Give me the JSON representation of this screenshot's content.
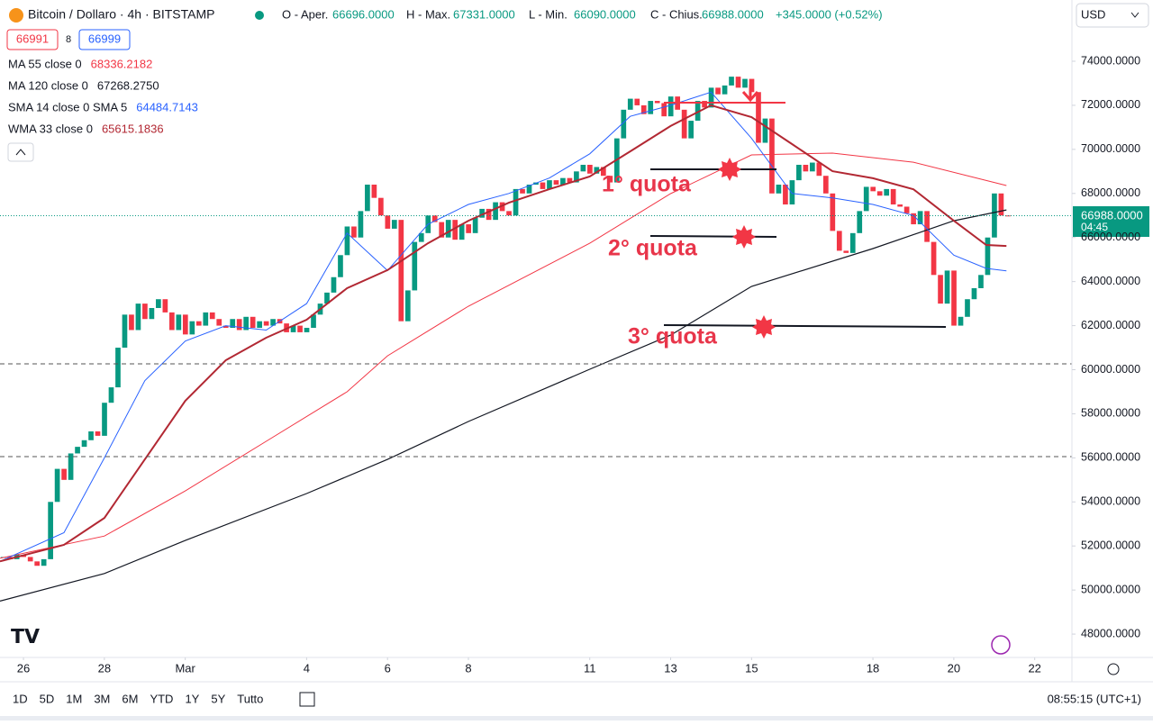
{
  "header": {
    "symbol": "Bitcoin / Dollaro · 4h · BITSTAMP",
    "o_label": "O - Aper.",
    "o": "66696.0000",
    "h_label": "H - Max.",
    "h": "67331.0000",
    "l_label": "L - Min.",
    "l": "66090.0000",
    "c_label": "C - Chius.",
    "c": "66988.0000",
    "change": "+345.0000 (+0.52%)",
    "bid": "66991",
    "spread": "8",
    "ask": "66999",
    "currency": "USD"
  },
  "indicators": [
    {
      "name": "MA 55 close 0",
      "value": "68336.2182",
      "color": "#f23645"
    },
    {
      "name": "MA 120 close 0",
      "value": "67268.2750",
      "color": "#131722"
    },
    {
      "name": "SMA 14 close 0 SMA 5",
      "value": "64484.7143",
      "color": "#2962ff"
    },
    {
      "name": "WMA 33 close 0",
      "value": "65615.1836",
      "color": "#b22833"
    }
  ],
  "annotations": [
    "1° quota",
    "2° quota",
    "3° quota"
  ],
  "price_label": {
    "price": "66988.0000",
    "countdown": "04:45"
  },
  "toolbar": {
    "ranges": [
      "1D",
      "5D",
      "1M",
      "3M",
      "6M",
      "YTD",
      "1Y",
      "5Y",
      "Tutto"
    ],
    "clock": "08:55:15 (UTC+1)"
  },
  "chart_data": {
    "type": "candlestick",
    "interval": "4h",
    "up_color": "#089981",
    "down_color": "#f23645",
    "xlim": [
      -0.58,
      25.92
    ],
    "ylim": [
      46940,
      76780
    ],
    "xticks": [
      {
        "value": 0,
        "label": "26"
      },
      {
        "value": 2,
        "label": "28"
      },
      {
        "value": 4,
        "label": "Mar"
      },
      {
        "value": 7,
        "label": "4"
      },
      {
        "value": 9,
        "label": "6"
      },
      {
        "value": 11,
        "label": "8"
      },
      {
        "value": 14,
        "label": "11"
      },
      {
        "value": 16,
        "label": "13"
      },
      {
        "value": 18,
        "label": "15"
      },
      {
        "value": 21,
        "label": "18"
      },
      {
        "value": 23,
        "label": "20"
      },
      {
        "value": 25,
        "label": "22"
      }
    ],
    "yticks": [
      {
        "value": 48000,
        "label": "48000.0000"
      },
      {
        "value": 50000,
        "label": "50000.0000"
      },
      {
        "value": 52000,
        "label": "52000.0000"
      },
      {
        "value": 54000,
        "label": "54000.0000"
      },
      {
        "value": 56000,
        "label": "56000.0000"
      },
      {
        "value": 58000,
        "label": "58000.0000"
      },
      {
        "value": 60000,
        "label": "60000.0000"
      },
      {
        "value": 62000,
        "label": "62000.0000"
      },
      {
        "value": 64000,
        "label": "64000.0000"
      },
      {
        "value": 66000,
        "label": "66000.0000"
      },
      {
        "value": 68000,
        "label": "68000.0000"
      },
      {
        "value": 70000,
        "label": "70000.0000"
      },
      {
        "value": 72000,
        "label": "72000.0000"
      },
      {
        "value": 74000,
        "label": "74000.0000"
      }
    ],
    "closes": [
      51500,
      51400,
      51600,
      51500,
      51300,
      51100,
      51400,
      54000,
      55500,
      55000,
      56200,
      56500,
      56800,
      57200,
      57000,
      58500,
      59200,
      61000,
      62500,
      61800,
      63000,
      62300,
      62800,
      63200,
      62600,
      61800,
      62500,
      61600,
      62200,
      62000,
      62600,
      62300,
      62000,
      61900,
      62300,
      61800,
      62400,
      61900,
      62200,
      62000,
      62300,
      62100,
      61700,
      62000,
      61700,
      61900,
      62500,
      63000,
      63500,
      64200,
      65200,
      66500,
      66000,
      67200,
      68400,
      67800,
      67000,
      66400,
      66800,
      62200,
      63600,
      65800,
      66200,
      67000,
      66700,
      66000,
      66800,
      65900,
      66600,
      66200,
      66900,
      67300,
      66800,
      67600,
      67200,
      67000,
      68200,
      68000,
      68400,
      68500,
      68200,
      68600,
      68400,
      68700,
      68500,
      69000,
      69300,
      68900,
      69200,
      68800,
      68500,
      70500,
      71800,
      72300,
      72000,
      71600,
      72200,
      72100,
      71500,
      72400,
      71800,
      70500,
      71300,
      72200,
      71900,
      72800,
      72500,
      72900,
      73300,
      72800,
      73200,
      72600,
      70300,
      71400,
      68000,
      68400,
      67500,
      68600,
      69300,
      69000,
      69400,
      68800,
      68000,
      66300,
      65400,
      65300,
      66200,
      67200,
      68300,
      68100,
      67900,
      68200,
      67500,
      67400,
      67100,
      66600,
      67200,
      65800,
      64300,
      63000,
      64500,
      62000,
      62400,
      63200,
      63700,
      64300,
      66000,
      68000,
      67000,
      66988
    ],
    "series": [
      {
        "name": "MA 55",
        "color": "#f23645",
        "width": 1,
        "x": [
          -0.58,
          2,
          4,
          6,
          8,
          9,
          11,
          14,
          16,
          18,
          20,
          22,
          24.3
        ],
        "values": [
          51440,
          52450,
          54500,
          56750,
          59000,
          60630,
          62880,
          65740,
          67990,
          69750,
          69830,
          69420,
          68360
        ]
      },
      {
        "name": "MA 120",
        "color": "#131722",
        "width": 1.2,
        "x": [
          -0.58,
          2,
          4,
          7,
          9,
          11,
          14,
          16,
          18,
          21,
          23,
          24.3
        ],
        "values": [
          49500,
          50750,
          52250,
          54380,
          55930,
          57650,
          60020,
          61570,
          63780,
          65500,
          66760,
          67250
        ]
      },
      {
        "name": "SMA 14",
        "color": "#2962ff",
        "width": 1,
        "x": [
          -0.58,
          1,
          2,
          3,
          4,
          5,
          6,
          7,
          8,
          9,
          10,
          11,
          12,
          13,
          14,
          15,
          16,
          17,
          18,
          19,
          20,
          21,
          22,
          23,
          23.8,
          24.3
        ],
        "values": [
          51300,
          52600,
          56000,
          59500,
          61300,
          62000,
          61800,
          63000,
          66200,
          64500,
          66600,
          67500,
          68000,
          68700,
          69800,
          71500,
          72000,
          72600,
          70500,
          68000,
          67800,
          67500,
          67000,
          65200,
          64600,
          64484
        ]
      },
      {
        "name": "WMA 33",
        "color": "#b22833",
        "width": 2,
        "x": [
          -0.58,
          1,
          2,
          3,
          4,
          5,
          6,
          7,
          8,
          9,
          10,
          11,
          12,
          13,
          14,
          15,
          16,
          17,
          18,
          19,
          20,
          21,
          22,
          23,
          23.8,
          24.3
        ],
        "values": [
          51300,
          52050,
          53270,
          55930,
          58590,
          60430,
          61450,
          62270,
          63700,
          64520,
          65740,
          66760,
          67580,
          68190,
          68770,
          69910,
          71060,
          72000,
          71460,
          70240,
          69010,
          68690,
          68190,
          66760,
          65660,
          65615
        ]
      }
    ]
  }
}
